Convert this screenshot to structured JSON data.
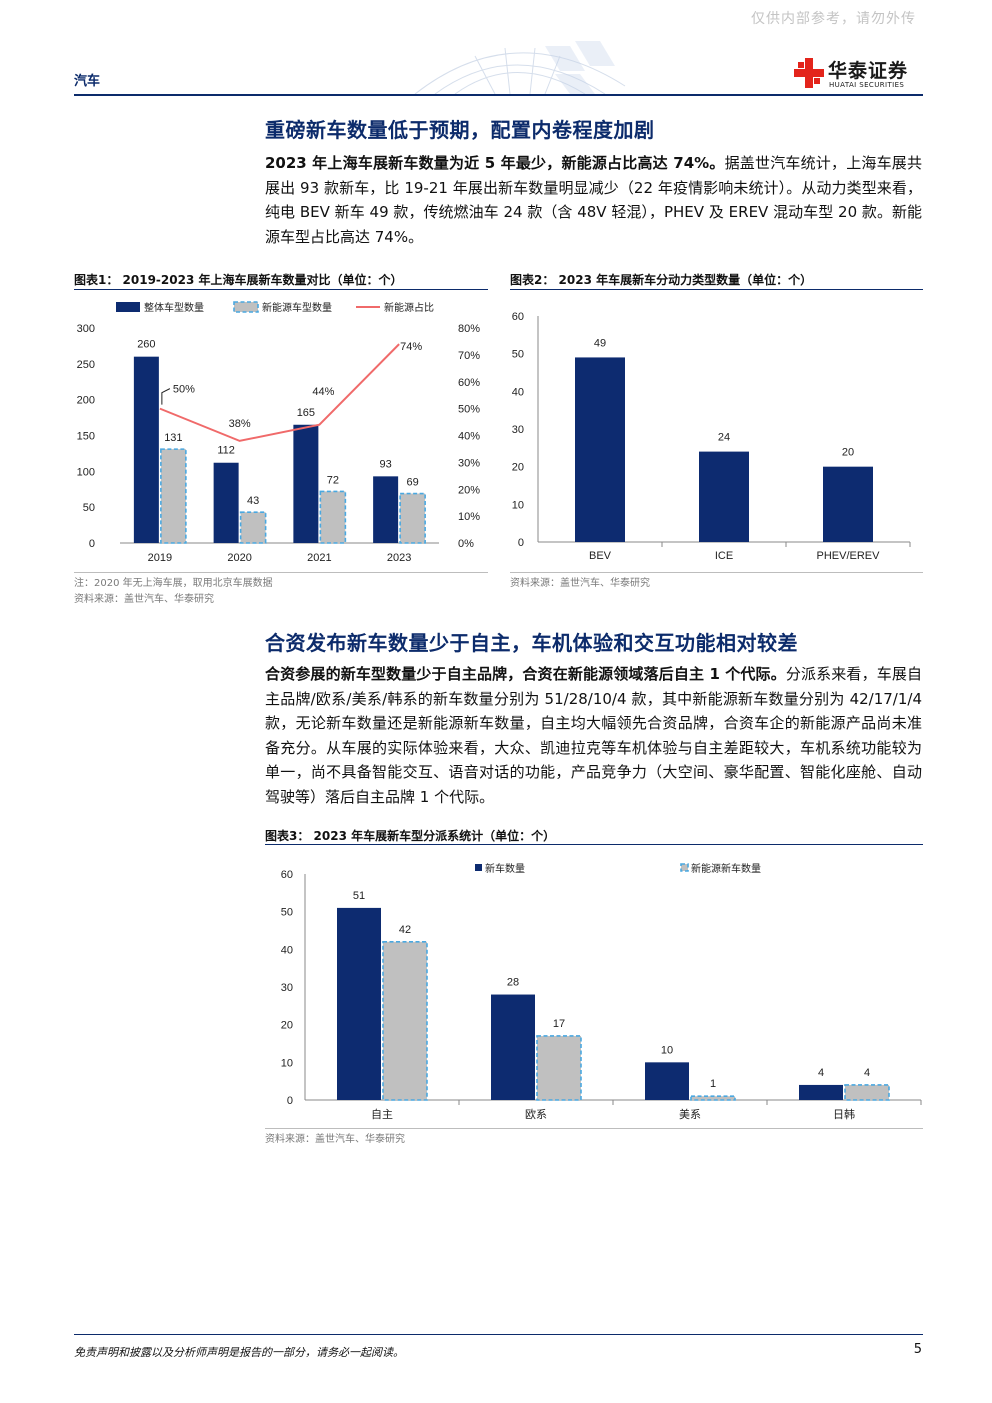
{
  "header": {
    "watermark": "仅供内部参考，请勿外传",
    "section": "汽车",
    "logo_cn": "华泰证券",
    "logo_en": "HUATAI SECURITIES"
  },
  "section1": {
    "heading": "重磅新车数量低于预期，配置内卷程度加剧",
    "lead_bold": "2023 年上海车展新车数量为近 5 年最少，新能源占比高达 74%。",
    "body": "据盖世汽车统计，上海车展共展出 93 款新车，比 19-21 年展出新车数量明显减少（22 年疫情影响未统计）。从动力类型来看，纯电 BEV 新车 49 款，传统燃油车 24 款（含 48V 轻混），PHEV 及 EREV 混动车型 20 款。新能源车型占比高达 74%。"
  },
  "figure1": {
    "title": "图表1：  2019-2023 年上海车展新车数量对比（单位：个）",
    "note": "注：2020 年无上海车展，取用北京车展数据",
    "source": "资料来源：盖世汽车、华泰研究"
  },
  "figure2": {
    "title": "图表2：  2023 年车展新车分动力类型数量（单位：个）",
    "source": "资料来源：盖世汽车、华泰研究"
  },
  "section2": {
    "heading": "合资发布新车数量少于自主，车机体验和交互功能相对较差",
    "lead_bold": "合资参展的新车型数量少于自主品牌，合资在新能源领域落后自主 1 个代际。",
    "body": "分派系来看，车展自主品牌/欧系/美系/韩系的新车数量分别为 51/28/10/4 款，其中新能源新车数量分别为 42/17/1/4 款，无论新车数量还是新能源新车数量，自主均大幅领先合资品牌，合资车企的新能源产品尚未准备充分。从车展的实际体验来看，大众、凯迪拉克等车机体验与自主差距较大，车机系统功能较为单一，尚不具备智能交互、语音对话的功能，产品竞争力（大空间、豪华配置、智能化座舱、自动驾驶等）落后自主品牌 1 个代际。"
  },
  "figure3": {
    "title": "图表3：  2023 年车展新车型分派系统计（单位：个）",
    "source": "资料来源：盖世汽车、华泰研究"
  },
  "footer": {
    "disclaimer": "免责声明和披露以及分析师声明是报告的一部分，请务必一起阅读。",
    "page": "5"
  },
  "colors": {
    "navy": "#0c2b6b",
    "bar_navy": "#0d2b70",
    "bar_gray": "#c0c0c0",
    "dash_blue": "#4aa8e0",
    "line_red": "#f06a6a"
  },
  "chart_data": [
    {
      "type": "bar",
      "categories": [
        "2019",
        "2020",
        "2021",
        "2023"
      ],
      "series": [
        {
          "name": "整体车型数量",
          "values": [
            260,
            112,
            165,
            93
          ],
          "axis": "left",
          "style": "solid-navy"
        },
        {
          "name": "新能源车型数量",
          "values": [
            131,
            43,
            72,
            69
          ],
          "axis": "left",
          "style": "gray-dashed"
        },
        {
          "name": "新能源占比",
          "values": [
            50,
            38,
            44,
            74
          ],
          "axis": "right",
          "type": "line",
          "labels": [
            "50%",
            "38%",
            "44%",
            "74%"
          ]
        }
      ],
      "ylim": [
        0,
        300
      ],
      "yticks": [
        0,
        50,
        100,
        150,
        200,
        250,
        300
      ],
      "y2lim": [
        0,
        80
      ],
      "y2ticks": [
        "0%",
        "10%",
        "20%",
        "30%",
        "40%",
        "50%",
        "60%",
        "70%",
        "80%"
      ],
      "legend": "top",
      "grid": false
    },
    {
      "type": "bar",
      "categories": [
        "BEV",
        "ICE",
        "PHEV/EREV"
      ],
      "values": [
        49,
        24,
        20
      ],
      "ylim": [
        0,
        60
      ],
      "yticks": [
        0,
        10,
        20,
        30,
        40,
        50,
        60
      ],
      "grid": false
    },
    {
      "type": "bar",
      "categories": [
        "自主",
        "欧系",
        "美系",
        "日韩"
      ],
      "series": [
        {
          "name": "新车数量",
          "values": [
            51,
            28,
            10,
            4
          ],
          "style": "solid-navy"
        },
        {
          "name": "新能源新车数量",
          "values": [
            42,
            17,
            1,
            4
          ],
          "style": "gray-dashed"
        }
      ],
      "ylim": [
        0,
        60
      ],
      "yticks": [
        0,
        10,
        20,
        30,
        40,
        50,
        60
      ],
      "legend": "top",
      "grid": false
    }
  ]
}
